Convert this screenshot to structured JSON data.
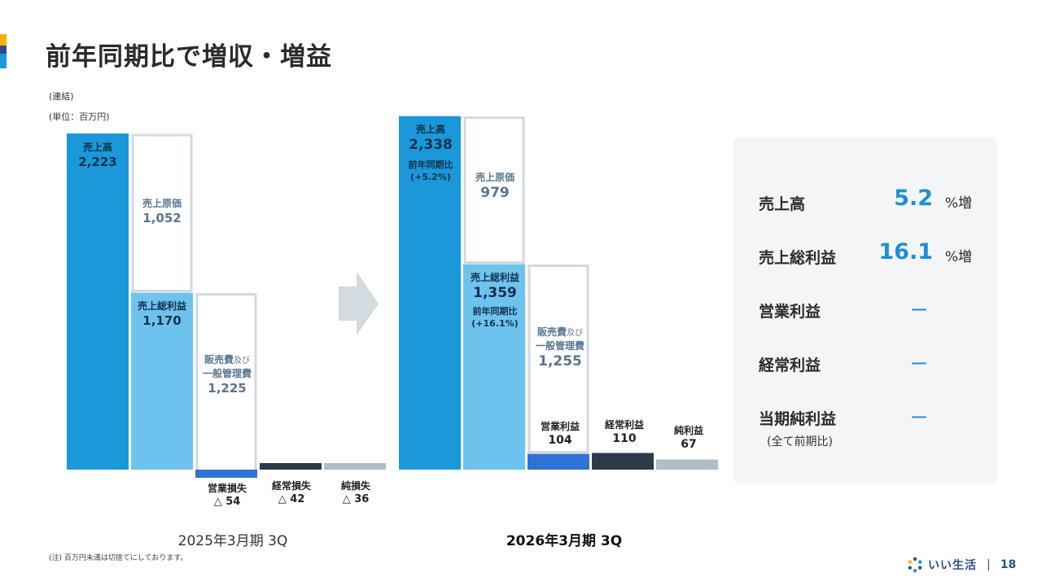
{
  "title": "前年同期比で増収・増益",
  "notes": {
    "consolidated": "(連結)",
    "unit": "(単位：百万円)"
  },
  "colors": {
    "revenue": "#1a98da",
    "gross_profit": "#6ec3ee",
    "operating": "#2f72d6",
    "ordinary": "#2d3a4a",
    "net": "#b0bcc6",
    "outline": "#d2d9e0",
    "arrow": "#d3dae0",
    "accent": "#1e8fd6"
  },
  "chart_data": [
    {
      "type": "bar",
      "title": "2025年3月期 3Q",
      "ylim": [
        0,
        2223
      ],
      "items": [
        {
          "name": "売上高",
          "value": 2223
        },
        {
          "name": "売上原価",
          "value": 1052
        },
        {
          "name": "売上総利益",
          "value": 1170
        },
        {
          "name": "販売費及び一般管理費",
          "value": 1225
        },
        {
          "name": "営業損失",
          "value": -54
        },
        {
          "name": "経常損失",
          "value": -42
        },
        {
          "name": "純損失",
          "value": -36
        }
      ]
    },
    {
      "type": "bar",
      "title": "2026年3月期 3Q",
      "ylim": [
        0,
        2338
      ],
      "items": [
        {
          "name": "売上高",
          "value": 2338,
          "yoy": "+5.2%"
        },
        {
          "name": "売上原価",
          "value": 979
        },
        {
          "name": "売上総利益",
          "value": 1359,
          "yoy": "+16.1%"
        },
        {
          "name": "販売費及び一般管理費",
          "value": 1255
        },
        {
          "name": "営業利益",
          "value": 104
        },
        {
          "name": "経常利益",
          "value": 110
        },
        {
          "name": "純利益",
          "value": 67
        }
      ]
    }
  ],
  "labels_2025": {
    "revenue_name": "売上高",
    "revenue_value": "2,223",
    "cogs_name": "売上原価",
    "cogs_value": "1,052",
    "gp_name": "売上総利益",
    "gp_value": "1,170",
    "sga_name_1": "販売費",
    "sga_name_small": "及び",
    "sga_name_2": "一般管理費",
    "sga_value": "1,225",
    "op_name": "営業損失",
    "op_value": "△ 54",
    "ord_name": "経常損失",
    "ord_value": "△ 42",
    "net_name": "純損失",
    "net_value": "△ 36",
    "period": "2025年3月期 3Q"
  },
  "labels_2026": {
    "revenue_name": "売上高",
    "revenue_value": "2,338",
    "revenue_yoy_label": "前年同期比",
    "revenue_yoy": "(+5.2%)",
    "cogs_name": "売上原価",
    "cogs_value": "979",
    "gp_name": "売上総利益",
    "gp_value": "1,359",
    "gp_yoy_label": "前年同期比",
    "gp_yoy": "(+16.1%)",
    "sga_name_1": "販売費",
    "sga_name_small": "及び",
    "sga_name_2": "一般管理費",
    "sga_value": "1,255",
    "op_name": "営業利益",
    "op_value": "104",
    "ord_name": "経常利益",
    "ord_value": "110",
    "net_name": "純利益",
    "net_value": "67",
    "period": "2026年3月期 3Q"
  },
  "summary": {
    "rows": [
      {
        "name": "売上高",
        "value": "5.2",
        "unit": "%増"
      },
      {
        "name": "売上総利益",
        "value": "16.1",
        "unit": "%増"
      },
      {
        "name": "営業利益",
        "dash": "ー"
      },
      {
        "name": "経常利益",
        "dash": "ー"
      },
      {
        "name": "当期純利益",
        "dash": "ー"
      }
    ],
    "note": "(全て前期比)"
  },
  "footer": {
    "note": "(注) 百万円未満は切捨てにしております。",
    "logo_text": "いい生活",
    "separator": "|",
    "page": "18"
  }
}
